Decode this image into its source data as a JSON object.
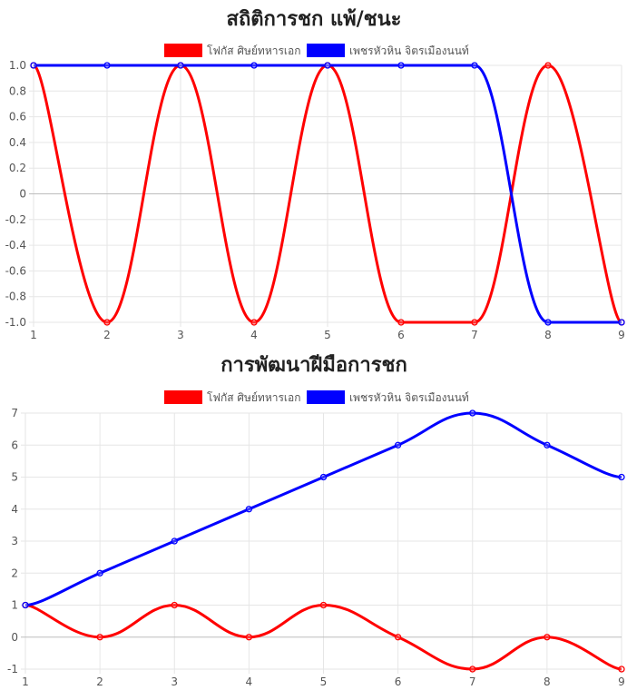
{
  "colors": {
    "series_a": "#ff0000",
    "series_b": "#0000ff"
  },
  "chart_data": [
    {
      "type": "line",
      "title": "สถิติการชก แพ้/ชนะ",
      "x": [
        1,
        2,
        3,
        4,
        5,
        6,
        7,
        8,
        9
      ],
      "y_ticks": [
        "1.0",
        "0.8",
        "0.6",
        "0.4",
        "0.2",
        "0",
        "-0.2",
        "-0.4",
        "-0.6",
        "-0.8",
        "-1.0"
      ],
      "ylim": [
        -1,
        1
      ],
      "legend": "top-center",
      "grid": true,
      "series": [
        {
          "name": "โฟกัส ศิษย์ทหารเอก",
          "color": "#ff0000",
          "values": [
            1,
            -1,
            1,
            -1,
            1,
            -1,
            -1,
            1,
            -1
          ]
        },
        {
          "name": "เพชรหัวหิน จิตรเมืองนนท์",
          "color": "#0000ff",
          "values": [
            1,
            1,
            1,
            1,
            1,
            1,
            1,
            -1,
            -1
          ]
        }
      ]
    },
    {
      "type": "line",
      "title": "การพัฒนาฝีมือการชก",
      "x": [
        1,
        2,
        3,
        4,
        5,
        6,
        7,
        8,
        9
      ],
      "y_ticks": [
        "7",
        "6",
        "5",
        "4",
        "3",
        "2",
        "1",
        "0",
        "-1"
      ],
      "ylim": [
        -1,
        7
      ],
      "legend": "top-center",
      "grid": true,
      "series": [
        {
          "name": "โฟกัส ศิษย์ทหารเอก",
          "color": "#ff0000",
          "values": [
            1,
            0,
            1,
            0,
            1,
            0,
            -1,
            0,
            -1
          ]
        },
        {
          "name": "เพชรหัวหิน จิตรเมืองนนท์",
          "color": "#0000ff",
          "values": [
            1,
            2,
            3,
            4,
            5,
            6,
            7,
            6,
            5
          ]
        }
      ]
    }
  ]
}
